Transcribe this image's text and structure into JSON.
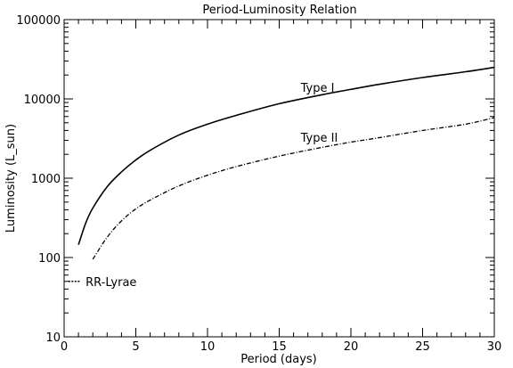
{
  "chart_data": {
    "type": "line",
    "title": "Period-Luminosity Relation",
    "xlabel": "Period (days)",
    "ylabel": "Luminosity (L_sun)",
    "xlim": [
      0,
      30
    ],
    "ylim": [
      10,
      100000
    ],
    "yscale": "log",
    "grid": false,
    "xticks": [
      0,
      5,
      10,
      15,
      20,
      25,
      30
    ],
    "xtick_labels": [
      "0",
      "5",
      "10",
      "15",
      "20",
      "25",
      "30"
    ],
    "yticks": [
      10,
      100,
      1000,
      10000,
      100000
    ],
    "ytick_labels": [
      "10",
      "100",
      "1000",
      "10000",
      "100000"
    ],
    "series": [
      {
        "name": "Type I",
        "style": "solid",
        "x": [
          1,
          1.5,
          2,
          3,
          4,
          5,
          6,
          8,
          10,
          12,
          15,
          18,
          20,
          22,
          25,
          28,
          30
        ],
        "y": [
          145,
          270,
          420,
          780,
          1200,
          1700,
          2250,
          3500,
          4800,
          6200,
          8700,
          11300,
          13200,
          15300,
          18600,
          22000,
          25000
        ]
      },
      {
        "name": "Type II",
        "style": "dashed",
        "x": [
          2,
          3,
          4,
          5,
          6,
          8,
          10,
          12,
          15,
          18,
          20,
          22,
          25,
          28,
          30
        ],
        "y": [
          95,
          180,
          290,
          410,
          530,
          800,
          1090,
          1400,
          1900,
          2450,
          2850,
          3250,
          4000,
          4800,
          5800
        ]
      }
    ],
    "annotations": [
      {
        "text": "Type I",
        "x": 16.5,
        "y": 14000
      },
      {
        "text": "Type II",
        "x": 16.5,
        "y": 3300
      },
      {
        "text": "RR-Lyrae",
        "x": 1.5,
        "y": 50
      }
    ],
    "rr_lyrae_marker": {
      "x": [
        0.3,
        1.1
      ],
      "y": [
        50,
        50
      ],
      "style": "dotted"
    }
  }
}
